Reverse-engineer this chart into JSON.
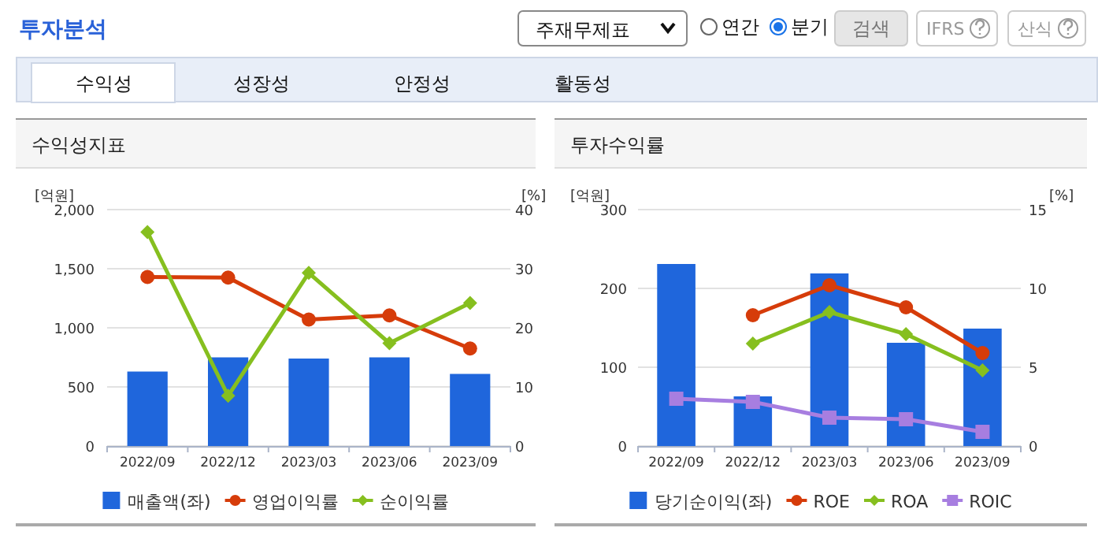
{
  "chart_data": [
    {
      "type": "other",
      "title": "투자분석",
      "annotations": [
        "주재무제표",
        "연간",
        "분기",
        "검색",
        "IFRS",
        "산식",
        "수익성",
        "성장성",
        "안정성",
        "활동성"
      ]
    },
    {
      "type": "bar",
      "title": "수익성지표",
      "ylabel": "[억원]",
      "y2label": "[%]",
      "categories": [
        "2022/09",
        "2022/12",
        "2023/03",
        "2023/06",
        "2023/09"
      ],
      "series": [
        {
          "name": "매출액(좌)",
          "type": "bar",
          "color": "#1f66dc",
          "values": [
            630,
            750,
            740,
            750,
            610
          ]
        },
        {
          "name": "영업이익률",
          "type": "line",
          "axis": "y2",
          "marker": "circle",
          "color": "#d63c0a",
          "values": [
            28.6,
            28.5,
            21.4,
            22.1,
            16.5
          ]
        },
        {
          "name": "순이익률",
          "type": "line",
          "axis": "y2",
          "marker": "diamond",
          "color": "#86bf1f",
          "values": [
            36.2,
            8.5,
            29.3,
            17.4,
            24.2
          ]
        }
      ],
      "ylim": [
        0,
        2000
      ],
      "yticks": [
        0,
        500,
        {
          "value": 1000,
          "label": "1,000"
        },
        {
          "value": 1500,
          "label": "1,500"
        },
        {
          "value": 2000,
          "label": "2,000"
        }
      ],
      "y2lim": [
        0,
        40
      ],
      "y2ticks": [
        0,
        10,
        20,
        30,
        40
      ],
      "grid": "y",
      "legend": "bottom"
    },
    {
      "type": "bar",
      "title": "투자수익률",
      "ylabel": "[억원]",
      "y2label": "[%]",
      "categories": [
        "2022/09",
        "2022/12",
        "2023/03",
        "2023/06",
        "2023/09"
      ],
      "series": [
        {
          "name": "당기순이익(좌)",
          "type": "bar",
          "color": "#1f66dc",
          "values": [
            231,
            63,
            219,
            131,
            149
          ]
        },
        {
          "name": "ROE",
          "type": "line",
          "axis": "y2",
          "marker": "circle",
          "color": "#d63c0a",
          "values": [
            null,
            8.3,
            10.2,
            8.8,
            5.9
          ]
        },
        {
          "name": "ROA",
          "type": "line",
          "axis": "y2",
          "marker": "diamond",
          "color": "#86bf1f",
          "values": [
            null,
            6.5,
            8.5,
            7.1,
            4.8
          ]
        },
        {
          "name": "ROIC",
          "type": "line",
          "axis": "y2",
          "marker": "square",
          "color": "#a77ee0",
          "values": [
            3.0,
            2.8,
            1.8,
            1.7,
            0.9
          ]
        }
      ],
      "ylim": [
        0,
        300
      ],
      "yticks": [
        0,
        100,
        200,
        300
      ],
      "y2lim": [
        0,
        15
      ],
      "y2ticks": [
        0,
        5,
        10,
        15
      ],
      "grid": "y",
      "legend": "bottom"
    }
  ]
}
